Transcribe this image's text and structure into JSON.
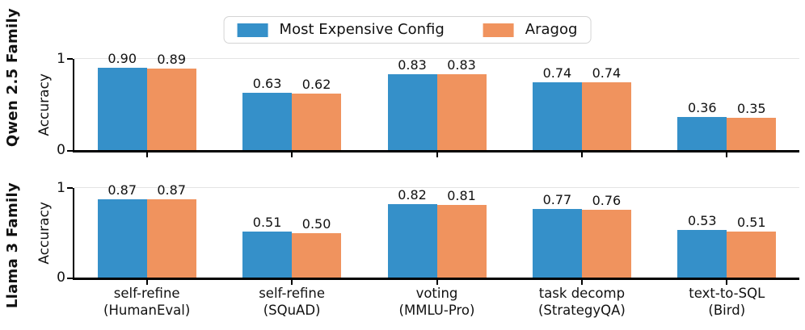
{
  "legend": {
    "items": [
      {
        "label": "Most Expensive Config",
        "color": "#3590c9",
        "swatch_icon": "blue-square-swatch"
      },
      {
        "label": "Aragog",
        "color": "#f0935e",
        "swatch_icon": "orange-square-swatch"
      }
    ]
  },
  "x_axis": {
    "categories": [
      {
        "line1": "self-refine",
        "line2": "(HumanEval)"
      },
      {
        "line1": "self-refine",
        "line2": "(SQuAD)"
      },
      {
        "line1": "voting",
        "line2": "(MMLU-Pro)"
      },
      {
        "line1": "task decomp",
        "line2": "(StrategyQA)"
      },
      {
        "line1": "text-to-SQL",
        "line2": "(Bird)"
      }
    ]
  },
  "chart_data": [
    {
      "type": "bar",
      "row_label": "Qwen 2.5 Family",
      "ylabel": "Accuracy",
      "ylim": [
        0,
        1
      ],
      "ytick_labels": [
        "1",
        "0"
      ],
      "grid": "horizontal gridline at y=1 only",
      "legend_position": "top center (shared, above first panel)",
      "categories": [
        "self-refine (HumanEval)",
        "self-refine (SQuAD)",
        "voting (MMLU-Pro)",
        "task decomp (StrategyQA)",
        "text-to-SQL (Bird)"
      ],
      "series": [
        {
          "name": "Most Expensive Config",
          "values": [
            0.9,
            0.63,
            0.83,
            0.74,
            0.36
          ]
        },
        {
          "name": "Aragog",
          "values": [
            0.89,
            0.62,
            0.83,
            0.74,
            0.35
          ]
        }
      ]
    },
    {
      "type": "bar",
      "row_label": "Llama 3 Family",
      "ylabel": "Accuracy",
      "ylim": [
        0,
        1
      ],
      "ytick_labels": [
        "1",
        "0"
      ],
      "grid": "horizontal gridline at y=1 only",
      "categories": [
        "self-refine (HumanEval)",
        "self-refine (SQuAD)",
        "voting (MMLU-Pro)",
        "task decomp (StrategyQA)",
        "text-to-SQL (Bird)"
      ],
      "series": [
        {
          "name": "Most Expensive Config",
          "values": [
            0.87,
            0.51,
            0.82,
            0.77,
            0.53
          ]
        },
        {
          "name": "Aragog",
          "values": [
            0.87,
            0.5,
            0.81,
            0.76,
            0.51
          ]
        }
      ]
    }
  ]
}
